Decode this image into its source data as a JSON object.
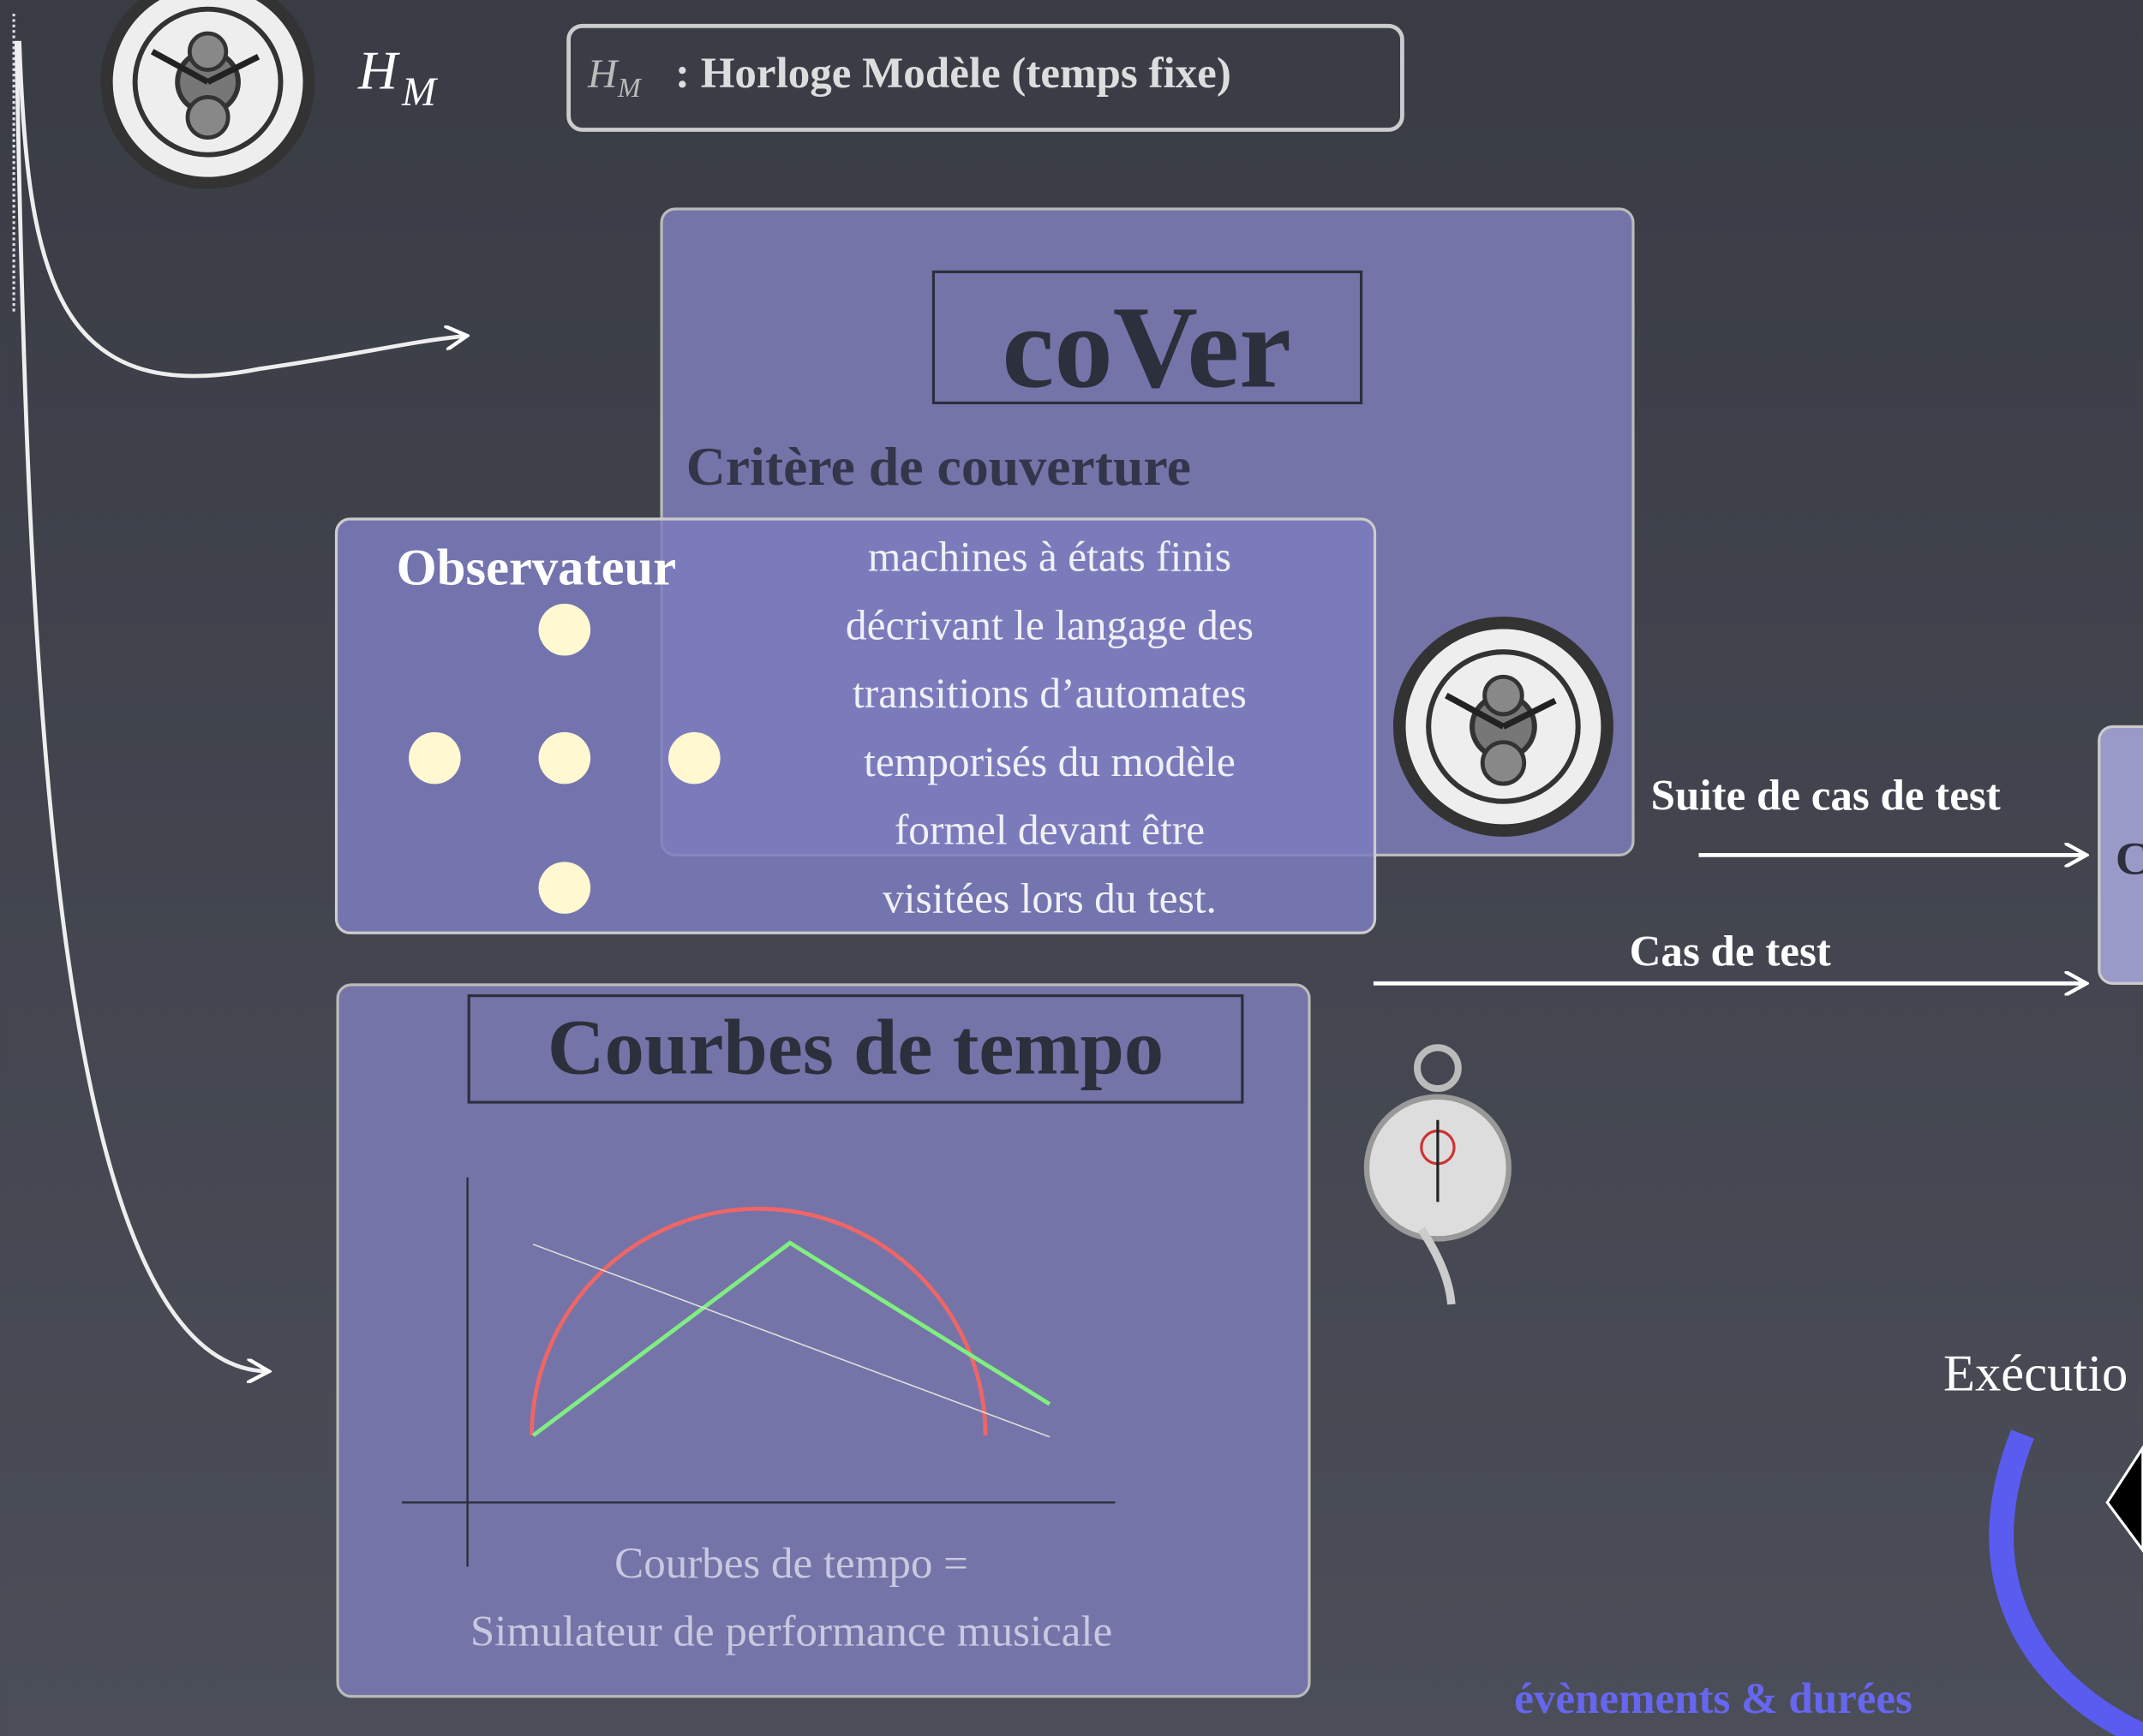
{
  "header": {
    "symbol": "H",
    "subscript": "M"
  },
  "legend": {
    "symbol": "H",
    "subscript": "M",
    "text": ": Horloge Modèle (temps fixe)"
  },
  "cover": {
    "title": "coVer",
    "subtitle": "Critère de couverture"
  },
  "observer": {
    "title": "Observateur",
    "lines": [
      "machines à états finis",
      "décrivant le langage des",
      "transitions d’automates",
      "temporisés du modèle",
      "formel devant être",
      "visitées lors du test."
    ]
  },
  "tempo": {
    "title": "Courbes de tempo",
    "caption": [
      "Courbes de tempo =",
      "Simulateur de performance musicale"
    ]
  },
  "arrows": {
    "suite": "Suite de cas de test",
    "case": "Cas de test"
  },
  "right_box": {
    "label": "C"
  },
  "execution": {
    "label": "Exécutio"
  },
  "events": {
    "label": "évènements & durées"
  }
}
